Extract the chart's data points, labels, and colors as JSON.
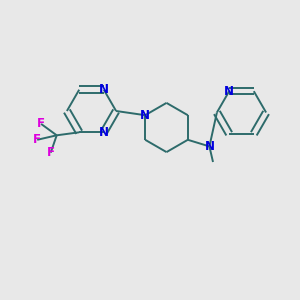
{
  "bg_color": "#e8e8e8",
  "bond_color": "#2d6b6b",
  "nitrogen_color": "#0000dd",
  "fluorine_color": "#dd00dd",
  "lw": 1.4,
  "fs": 8.5,
  "fig_size": [
    3.0,
    3.0
  ],
  "dpi": 100,
  "xlim": [
    0,
    10
  ],
  "ylim": [
    0,
    10
  ]
}
